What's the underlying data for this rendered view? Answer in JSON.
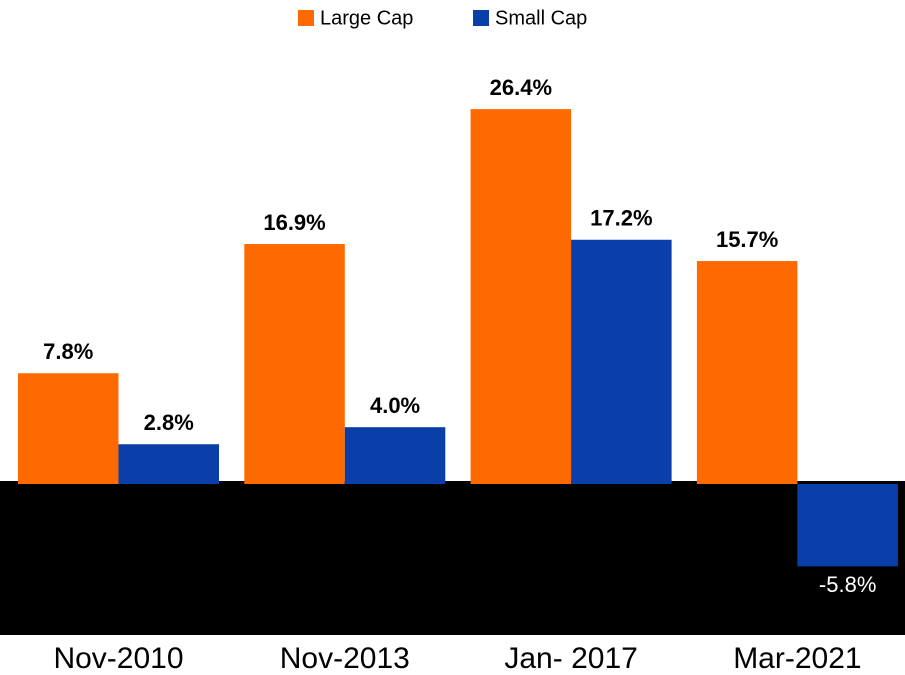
{
  "chart_data": {
    "type": "bar",
    "categories": [
      "Nov-2010",
      "Nov-2013",
      "Jan- 2017",
      "Mar-2021"
    ],
    "series": [
      {
        "name": "Large Cap",
        "color": "#ff6a00",
        "values": [
          7.8,
          16.9,
          26.4,
          15.7
        ],
        "value_labels": [
          "7.8%",
          "16.9%",
          "26.4%",
          "15.7%"
        ]
      },
      {
        "name": "Small Cap",
        "color": "#0a3ea8",
        "values": [
          2.8,
          4.0,
          17.2,
          -5.8
        ],
        "value_labels": [
          "2.8%",
          "4.0%",
          "17.2%",
          "-5.8%"
        ]
      }
    ],
    "ylim": [
      -10,
      30
    ],
    "legend": "top"
  }
}
